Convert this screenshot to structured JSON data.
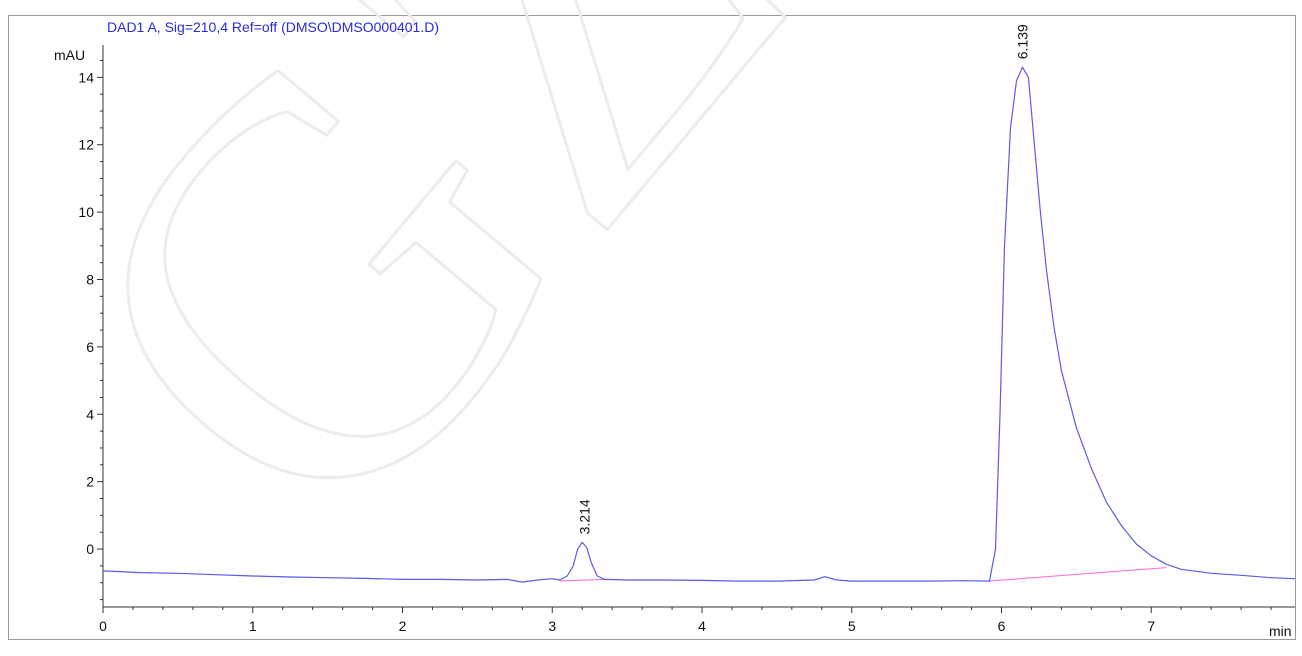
{
  "chart_data": {
    "type": "line",
    "title": "DAD1 A, Sig=210,4 Ref=off (DMSO\\DMSO000401.D)",
    "xlabel": "min",
    "ylabel": "mAU",
    "xlim": [
      0,
      7.96
    ],
    "ylim": [
      -1.72,
      14.96
    ],
    "xticks": [
      0,
      1,
      2,
      3,
      4,
      5,
      6,
      7
    ],
    "yticks": [
      0,
      2,
      4,
      6,
      8,
      10,
      12,
      14
    ],
    "grid": false,
    "colors": {
      "signal": "#5b5bea",
      "baseline": "#ff66dd",
      "title": "#2b2bd8",
      "axis": "#333333"
    },
    "series": [
      {
        "x": [
          0,
          0.25,
          0.5,
          0.75,
          1,
          1.25,
          1.5,
          1.75,
          2,
          2.25,
          2.5,
          2.7,
          2.8,
          2.9,
          3.0,
          3.05,
          3.1,
          3.14,
          3.17,
          3.2,
          3.23,
          3.26,
          3.3,
          3.35,
          3.5,
          3.75,
          4,
          4.25,
          4.5,
          4.75,
          4.82,
          4.9,
          5.0,
          5.25,
          5.5,
          5.75,
          5.92,
          5.96,
          5.99,
          6.02,
          6.06,
          6.1,
          6.14,
          6.18,
          6.22,
          6.26,
          6.3,
          6.35,
          6.4,
          6.5,
          6.6,
          6.7,
          6.8,
          6.9,
          7.0,
          7.1,
          7.2,
          7.4,
          7.6,
          7.8,
          7.96
        ],
        "y": [
          -0.65,
          -0.7,
          -0.72,
          -0.76,
          -0.8,
          -0.83,
          -0.85,
          -0.87,
          -0.9,
          -0.9,
          -0.92,
          -0.9,
          -0.98,
          -0.92,
          -0.88,
          -0.92,
          -0.8,
          -0.5,
          0.0,
          0.2,
          0.05,
          -0.4,
          -0.8,
          -0.9,
          -0.92,
          -0.92,
          -0.93,
          -0.95,
          -0.95,
          -0.92,
          -0.82,
          -0.92,
          -0.95,
          -0.95,
          -0.95,
          -0.94,
          -0.95,
          0.0,
          4.0,
          9.0,
          12.5,
          13.9,
          14.3,
          14.0,
          12.0,
          10.0,
          8.3,
          6.6,
          5.3,
          3.6,
          2.4,
          1.4,
          0.7,
          0.15,
          -0.2,
          -0.45,
          -0.6,
          -0.72,
          -0.78,
          -0.85,
          -0.88
        ]
      }
    ],
    "baselines": [
      {
        "x": [
          3.05,
          3.35
        ],
        "y": [
          -0.95,
          -0.9
        ]
      },
      {
        "x": [
          5.92,
          7.1
        ],
        "y": [
          -0.95,
          -0.55
        ]
      }
    ],
    "peaks": [
      {
        "rt": "3.214",
        "x": 3.214,
        "y": 0.2
      },
      {
        "rt": "6.139",
        "x": 6.139,
        "y": 14.3
      }
    ]
  },
  "watermark": "GZHL"
}
